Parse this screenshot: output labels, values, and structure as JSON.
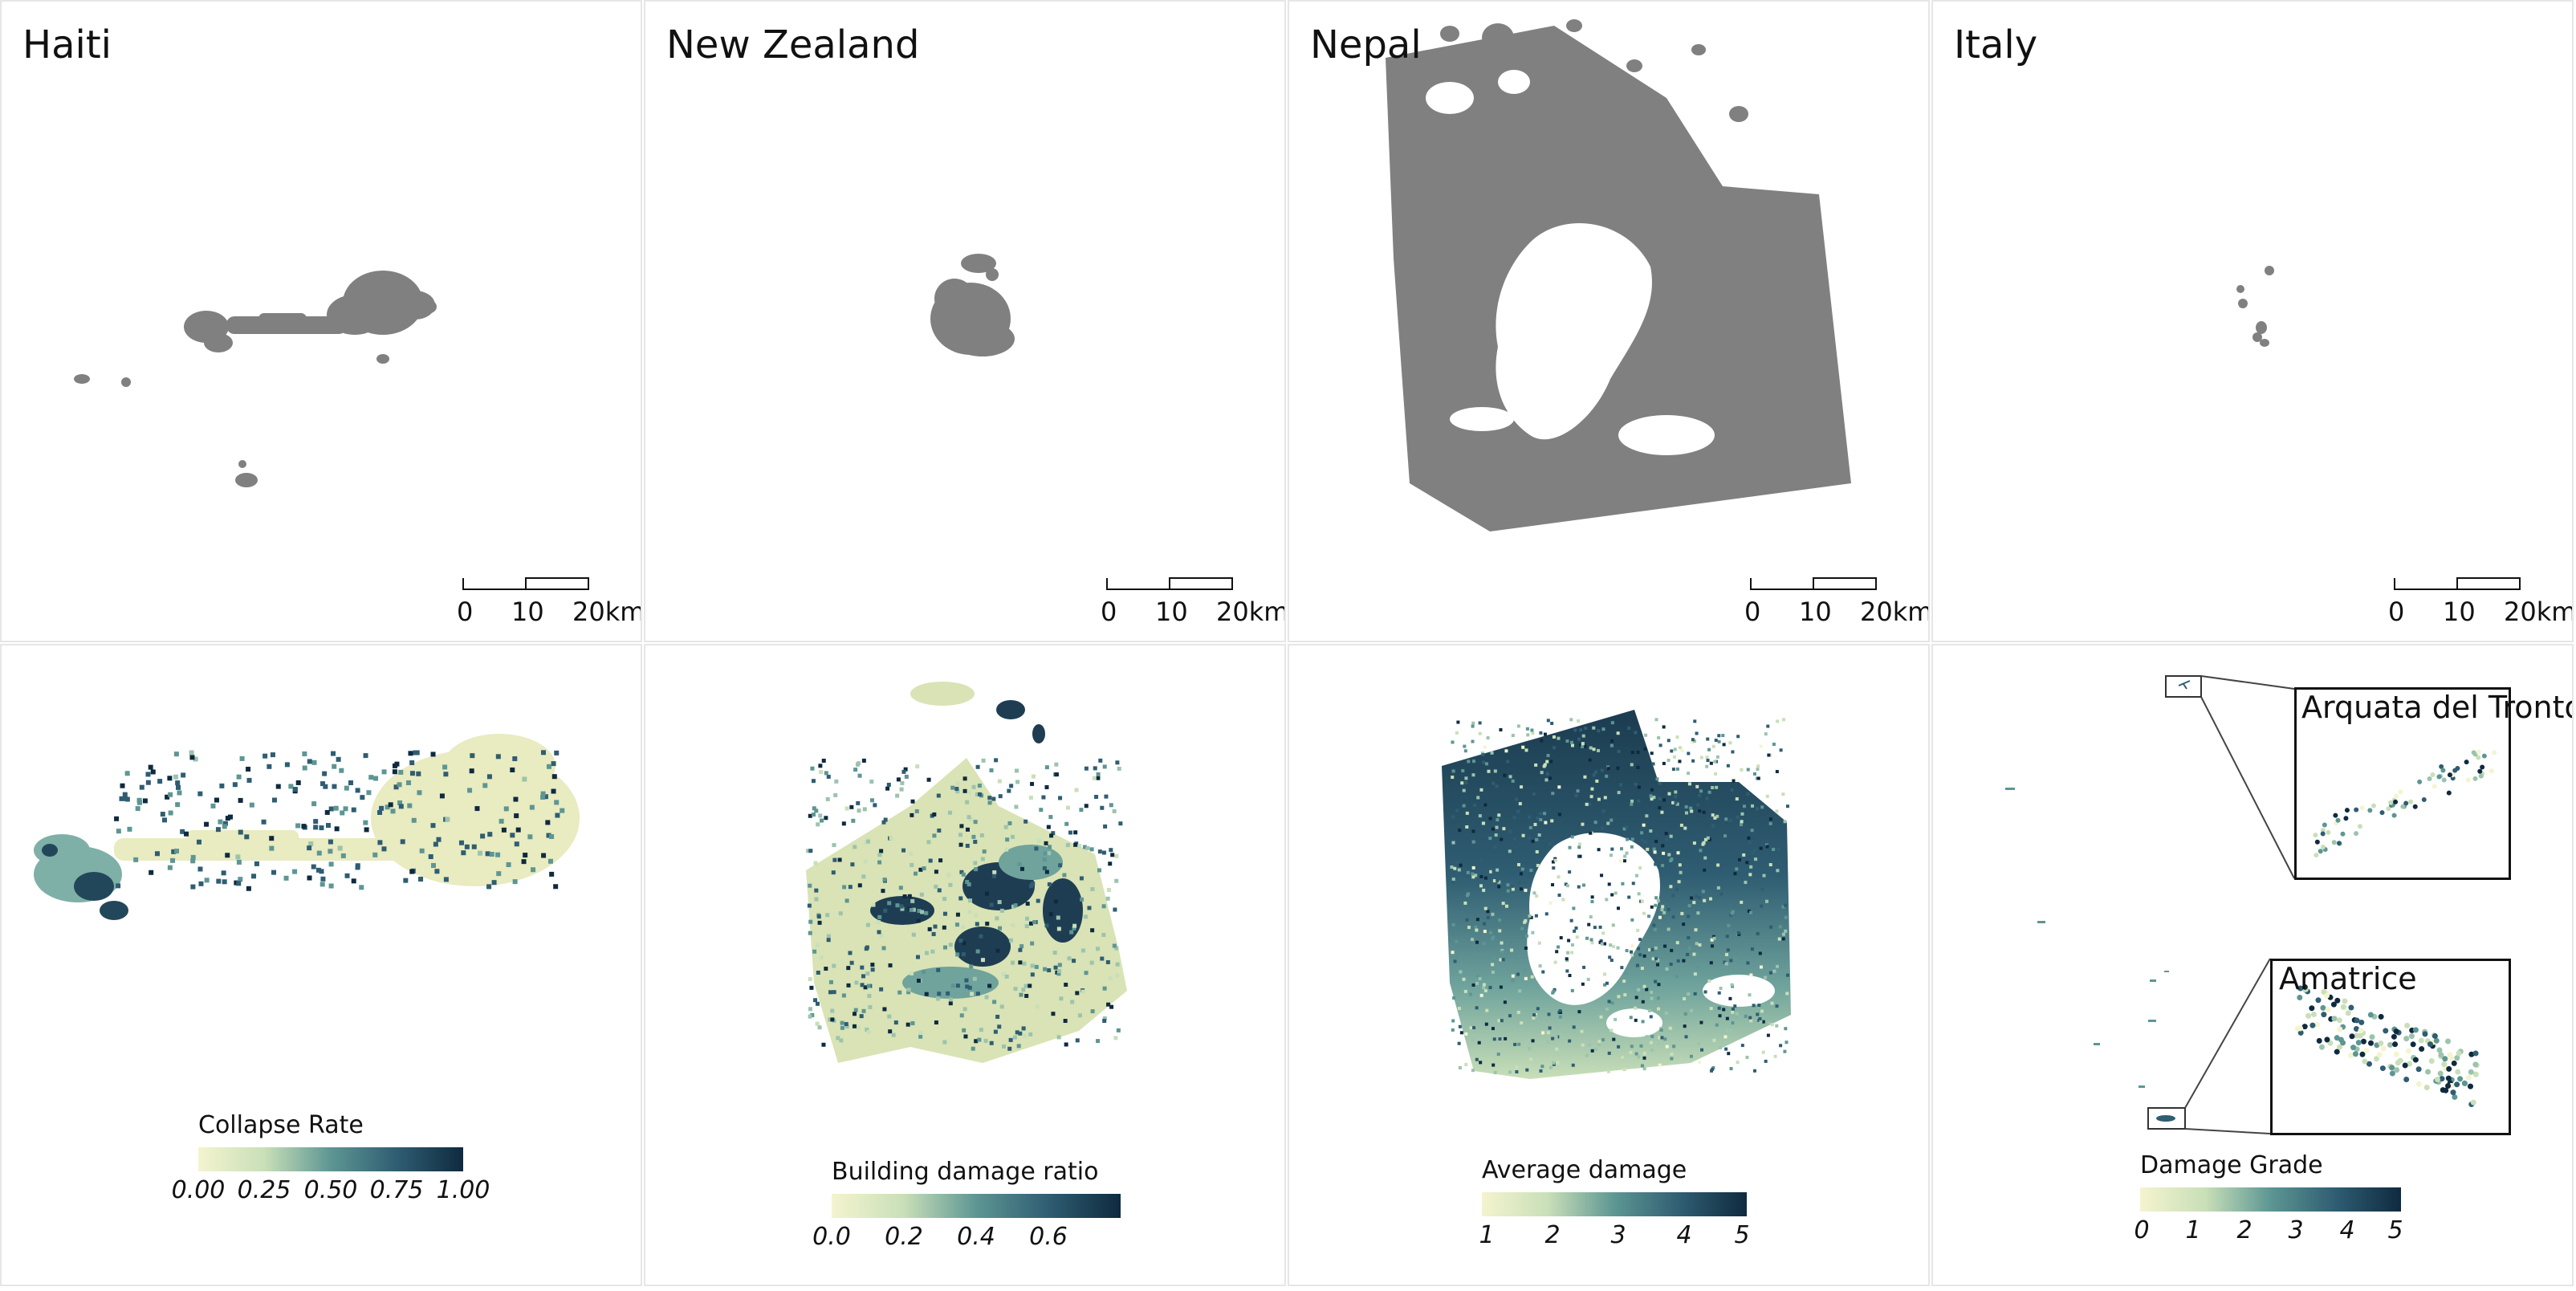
{
  "panels": {
    "haiti": {
      "title": "Haiti"
    },
    "nz": {
      "title": "New Zealand"
    },
    "nepal": {
      "title": "Nepal"
    },
    "italy": {
      "title": "Italy"
    }
  },
  "scalebar": {
    "ticks": [
      "0",
      "10",
      "20km"
    ]
  },
  "legends": {
    "haiti": {
      "title": "Collapse Rate",
      "ticks": [
        "0.00",
        "0.25",
        "0.50",
        "0.75",
        "1.00"
      ]
    },
    "nz": {
      "title": "Building damage ratio",
      "ticks": [
        "0.0",
        "0.2",
        "0.4",
        "0.6"
      ]
    },
    "nepal": {
      "title": "Average damage",
      "ticks": [
        "1",
        "2",
        "3",
        "4",
        "5"
      ]
    },
    "italy": {
      "title": "Damage Grade",
      "ticks": [
        "0",
        "1",
        "2",
        "3",
        "4",
        "5"
      ]
    }
  },
  "insets": {
    "arquata": {
      "label": "Arquata del Tronto"
    },
    "amatrice": {
      "label": "Amatrice"
    }
  },
  "colors": {
    "footprint": "#808080",
    "scale_low": "#f4f4cf",
    "scale_mid": "#5d9693",
    "scale_high": "#0f2a3f",
    "panel_border": "#e6e6e6"
  }
}
